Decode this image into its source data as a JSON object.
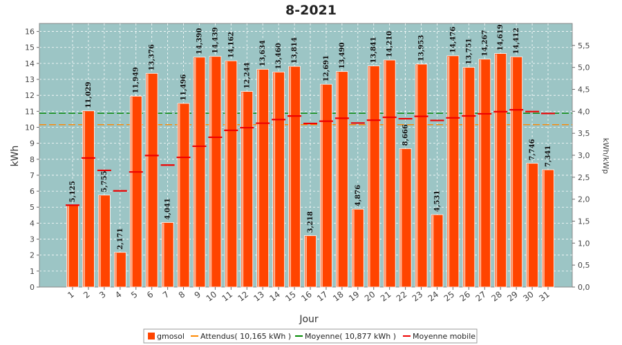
{
  "chart_data": {
    "type": "bar",
    "title": "8-2021",
    "xlabel": "Jour",
    "ylabel": "kWh",
    "y2label": "kWh/kWp",
    "ylim": [
      0,
      16.5
    ],
    "y2lim": [
      0,
      6.0
    ],
    "yticks": [
      "0",
      "1",
      "2",
      "3",
      "4",
      "5",
      "6",
      "7",
      "8",
      "9",
      "10",
      "11",
      "12",
      "13",
      "14",
      "15",
      "16"
    ],
    "y2ticks": [
      "0,0",
      "0,5",
      "1,0",
      "1,5",
      "2,0",
      "2,5",
      "3,0",
      "3,5",
      "4,0",
      "4,5",
      "5,0",
      "5,5"
    ],
    "categories": [
      "1",
      "2",
      "3",
      "4",
      "5",
      "6",
      "7",
      "8",
      "9",
      "10",
      "11",
      "12",
      "13",
      "14",
      "15",
      "16",
      "17",
      "18",
      "19",
      "20",
      "21",
      "22",
      "23",
      "24",
      "25",
      "26",
      "27",
      "28",
      "29",
      "30",
      "31"
    ],
    "series": [
      {
        "name": "gmosol",
        "values": [
          5.125,
          11.029,
          5.755,
          2.171,
          11.949,
          13.376,
          4.041,
          11.496,
          14.39,
          14.439,
          14.162,
          12.244,
          13.634,
          13.46,
          13.814,
          3.218,
          12.691,
          13.49,
          4.876,
          13.841,
          14.21,
          8.666,
          13.953,
          4.531,
          14.476,
          13.751,
          14.267,
          14.619,
          14.412,
          7.746,
          7.341
        ],
        "labels": [
          "5,125",
          "11,029",
          "5,755",
          "2,171",
          "11,949",
          "13,376",
          "4,041",
          "11,496",
          "14,390",
          "14,439",
          "14,162",
          "12,244",
          "13,634",
          "13,460",
          "13,814",
          "3,218",
          "12,691",
          "13,490",
          "4,876",
          "13,841",
          "14,210",
          "8,666",
          "13,953",
          "4,531",
          "14,476",
          "13,751",
          "14,267",
          "14,619",
          "14,412",
          "7,746",
          "7,341"
        ],
        "color": "#ff4400"
      },
      {
        "name": "Moyenne mobile",
        "values": [
          5.125,
          8.077,
          7.303,
          6.02,
          7.206,
          8.234,
          7.635,
          8.117,
          8.814,
          9.376,
          9.811,
          9.974,
          10.255,
          10.484,
          10.706,
          10.238,
          10.382,
          10.565,
          10.266,
          10.445,
          10.625,
          10.536,
          10.684,
          10.428,
          10.59,
          10.712,
          10.844,
          10.978,
          11.096,
          10.984,
          10.866
        ],
        "color": "#ee0000"
      }
    ],
    "reference_lines": [
      {
        "name": "Attendus( 10,165 kWh )",
        "value": 10.165,
        "color": "#ff8800"
      },
      {
        "name": "Moyenne( 10,877 kWh )",
        "value": 10.877,
        "color": "#008800"
      }
    ],
    "legend": [
      "gmosol",
      "Attendus( 10,165 kWh )",
      "Moyenne( 10,877 kWh )",
      "Moyenne mobile"
    ],
    "legend_position": "bottom",
    "grid": true,
    "colors": {
      "plot_bg": "#9cc5c5",
      "grid": "#ffffff"
    }
  }
}
